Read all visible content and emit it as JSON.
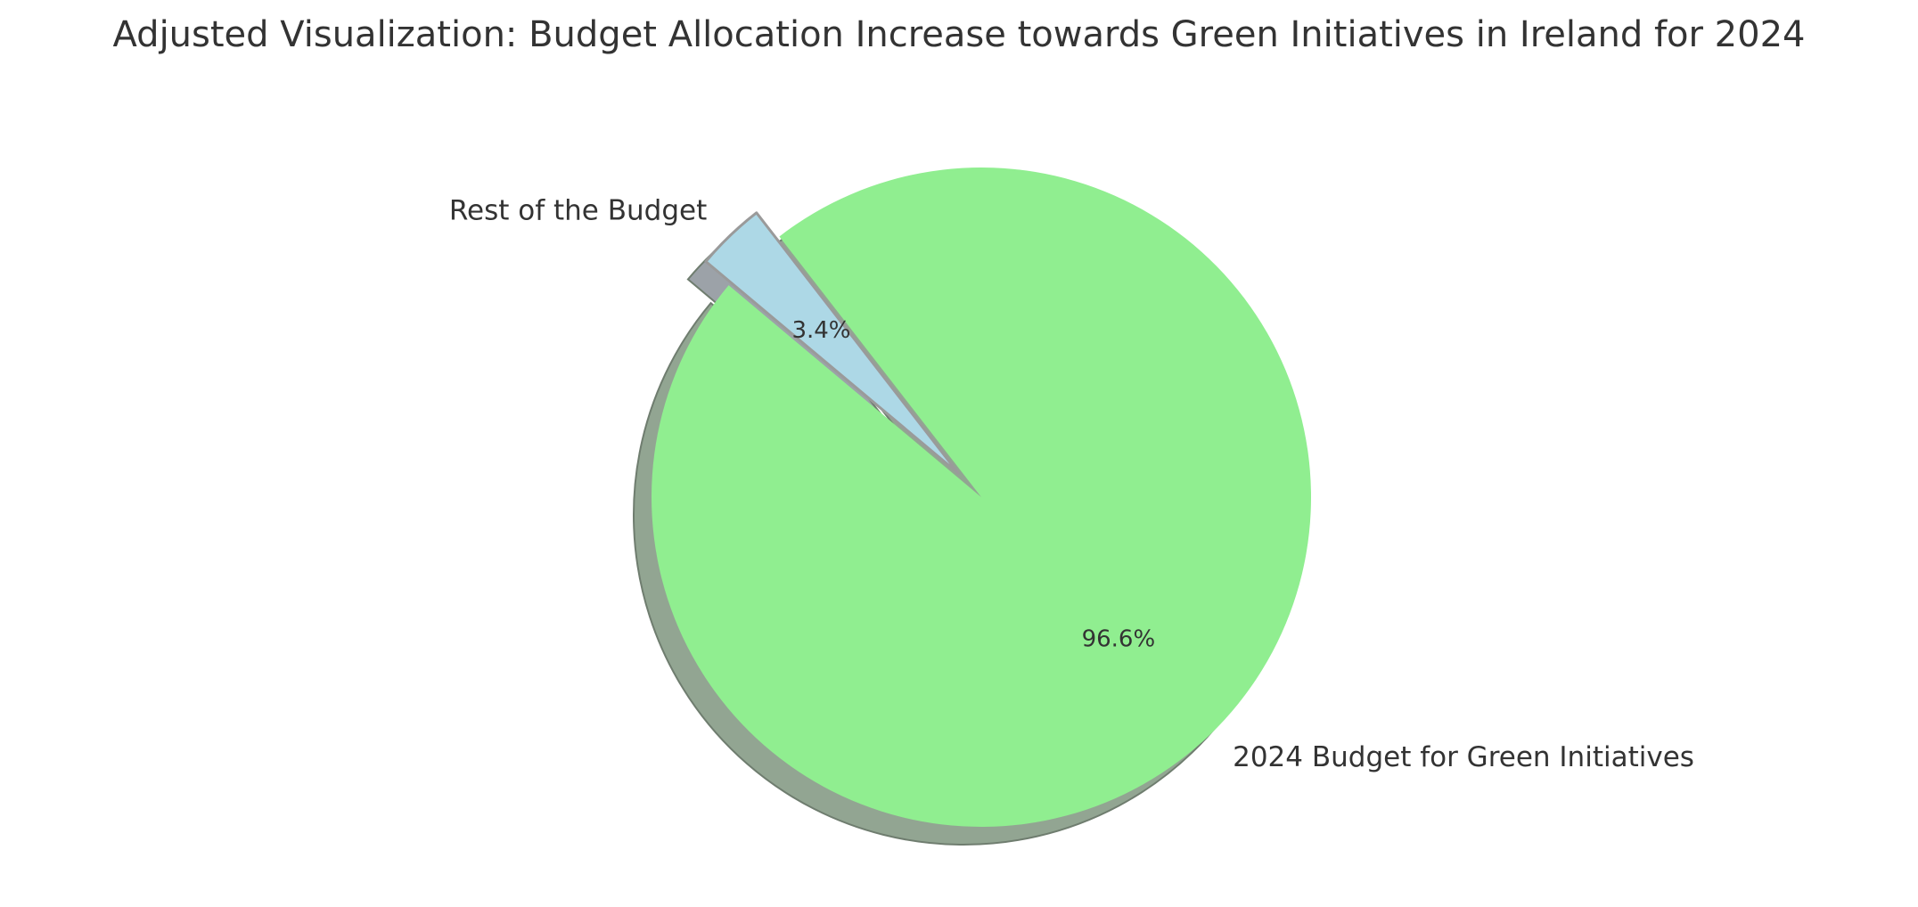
{
  "chart_data": {
    "type": "pie",
    "title": "Adjusted Visualization: Budget Allocation Increase towards Green Initiatives in Ireland for 2024",
    "slices": [
      {
        "label": "2024 Budget for Green Initiatives",
        "percent": 96.6,
        "pct_label": "96.6%",
        "color": "#90EE90",
        "shadow_color": "#92A592",
        "exploded": false
      },
      {
        "label": "Rest of the Budget",
        "percent": 3.4,
        "pct_label": "3.4%",
        "color": "#ADD8E6",
        "shadow_color": "#9CA2A8",
        "exploded": true
      }
    ],
    "start_angle_deg": 140,
    "shadow": true,
    "legend": "none"
  }
}
